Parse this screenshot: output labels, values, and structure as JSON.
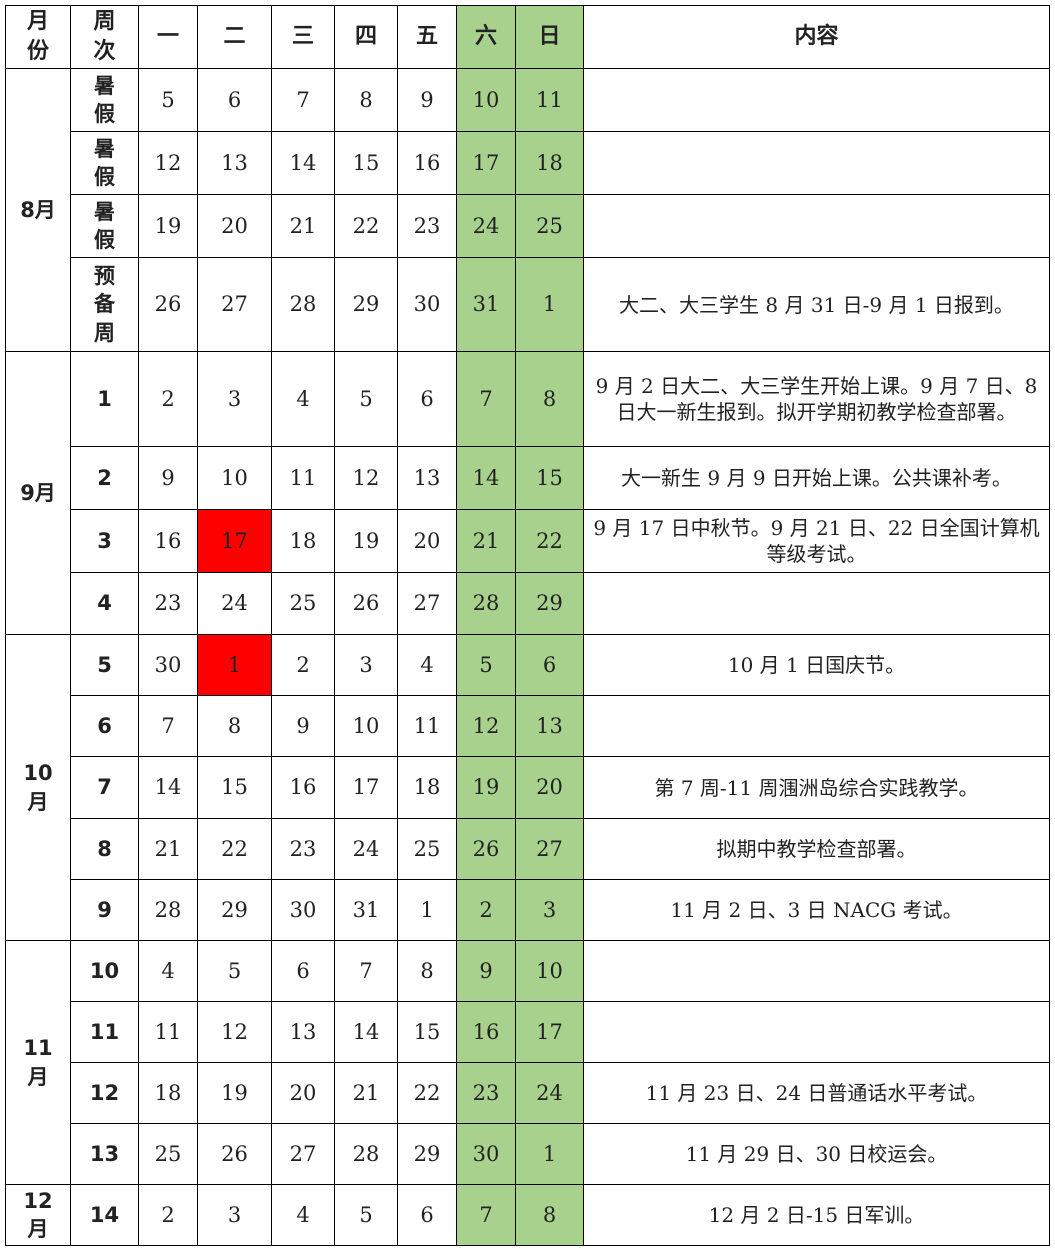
{
  "header": [
    "月份",
    "周次",
    "一",
    "二",
    "三",
    "四",
    "五",
    "六",
    "日",
    "内容"
  ],
  "months": [
    {
      "month": "8月",
      "weeks": [
        {
          "week": "暑假",
          "days": [
            5,
            6,
            7,
            8,
            9,
            10,
            11
          ]
        },
        {
          "week": "暑假",
          "days": [
            12,
            13,
            14,
            15,
            16,
            17,
            18
          ]
        },
        {
          "week": "暑假",
          "days": [
            19,
            20,
            21,
            22,
            23,
            24,
            25
          ]
        },
        {
          "week": "预备周",
          "days": [
            26,
            27,
            28,
            29,
            30,
            31,
            1
          ],
          "note": "大二、大三学生 8 月 31 日-9 月 1 日报到。"
        }
      ]
    },
    {
      "month": "9月",
      "weeks": [
        {
          "week": 1,
          "days": [
            2,
            3,
            4,
            5,
            6,
            7,
            8
          ],
          "note": "9 月 2 日大二、大三学生开始上课。9 月 7 日、8 日大一新生报到。拟开学期初教学检查部署。"
        },
        {
          "week": 2,
          "days": [
            9,
            10,
            11,
            12,
            13,
            14,
            15
          ],
          "note": "大一新生 9 月 9 日开始上课。公共课补考。"
        },
        {
          "week": 3,
          "days": [
            16,
            17,
            18,
            19,
            20,
            21,
            22
          ],
          "highlight": [
            1
          ],
          "note": "9 月 17 日中秋节。9 月 21 日、22 日全国计算机等级考试。"
        },
        {
          "week": 4,
          "days": [
            23,
            24,
            25,
            26,
            27,
            28,
            29
          ]
        }
      ]
    },
    {
      "month": "10月",
      "weeks": [
        {
          "week": 5,
          "days": [
            30,
            1,
            2,
            3,
            4,
            5,
            6
          ],
          "highlight": [
            1
          ],
          "note": "10 月 1 日国庆节。"
        },
        {
          "week": 6,
          "days": [
            7,
            8,
            9,
            10,
            11,
            12,
            13
          ]
        },
        {
          "week": 7,
          "days": [
            14,
            15,
            16,
            17,
            18,
            19,
            20
          ],
          "note": "第 7 周-11 周涠洲岛综合实践教学。"
        },
        {
          "week": 8,
          "days": [
            21,
            22,
            23,
            24,
            25,
            26,
            27
          ],
          "note": "拟期中教学检查部署。"
        },
        {
          "week": 9,
          "days": [
            28,
            29,
            30,
            31,
            1,
            2,
            3
          ],
          "note": "11 月 2 日、3 日 NACG 考试。"
        }
      ]
    },
    {
      "month": "11月",
      "weeks": [
        {
          "week": 10,
          "days": [
            4,
            5,
            6,
            7,
            8,
            9,
            10
          ]
        },
        {
          "week": 11,
          "days": [
            11,
            12,
            13,
            14,
            15,
            16,
            17
          ]
        },
        {
          "week": 12,
          "days": [
            18,
            19,
            20,
            21,
            22,
            23,
            24
          ],
          "note": "11 月 23 日、24 日普通话水平考试。"
        },
        {
          "week": 13,
          "days": [
            25,
            26,
            27,
            28,
            29,
            30,
            1
          ],
          "note": "11 月 29 日、30 日校运会。"
        }
      ]
    },
    {
      "month": "12月",
      "weeks": [
        {
          "week": 14,
          "days": [
            2,
            3,
            4,
            5,
            6,
            7,
            8
          ],
          "note": "12 月 2 日-15 日军训。"
        }
      ]
    }
  ]
}
